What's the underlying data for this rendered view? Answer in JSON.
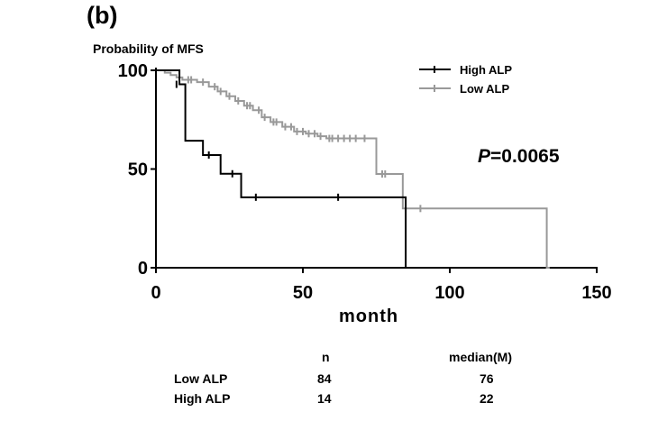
{
  "panel_label": "(b)",
  "p_value": {
    "symbol": "P",
    "text": "=0.0065"
  },
  "legend_position": "top-right",
  "chart_data": {
    "type": "line",
    "title": "",
    "xlabel": "month",
    "ylabel": "Probability of MFS",
    "xlim": [
      0,
      150
    ],
    "ylim": [
      0,
      100
    ],
    "xticks": [
      0,
      50,
      100,
      150
    ],
    "yticks": [
      0,
      50,
      100
    ],
    "grid": false,
    "series": [
      {
        "name": "High ALP",
        "color": "#000000",
        "steps": [
          [
            0,
            100
          ],
          [
            8,
            92.9
          ],
          [
            10,
            64.3
          ],
          [
            16,
            57.1
          ],
          [
            22,
            47.6
          ],
          [
            29,
            35.7
          ],
          [
            85,
            0
          ],
          [
            85.5,
            0
          ]
        ],
        "censored": [
          [
            7,
            92.9
          ],
          [
            18,
            57.1
          ],
          [
            26,
            47.6
          ],
          [
            34,
            35.7
          ],
          [
            62,
            35.7
          ]
        ]
      },
      {
        "name": "Low ALP",
        "color": "#999999",
        "steps": [
          [
            0,
            100
          ],
          [
            3,
            98.8
          ],
          [
            5,
            97.6
          ],
          [
            7,
            96.4
          ],
          [
            9,
            95.2
          ],
          [
            14,
            94.0
          ],
          [
            18,
            91.7
          ],
          [
            21,
            89.3
          ],
          [
            24,
            86.9
          ],
          [
            27,
            84.5
          ],
          [
            30,
            82.1
          ],
          [
            33,
            79.8
          ],
          [
            36,
            76.2
          ],
          [
            39,
            73.8
          ],
          [
            43,
            71.4
          ],
          [
            47,
            69.0
          ],
          [
            51,
            67.9
          ],
          [
            55,
            66.6
          ],
          [
            58,
            65.5
          ],
          [
            75,
            47.5
          ],
          [
            84,
            30.0
          ],
          [
            133,
            0
          ],
          [
            134,
            0
          ]
        ],
        "censored": [
          [
            11,
            95.2
          ],
          [
            12,
            95.2
          ],
          [
            16,
            94.0
          ],
          [
            20,
            91.7
          ],
          [
            22,
            89.3
          ],
          [
            25,
            86.9
          ],
          [
            28,
            84.5
          ],
          [
            31,
            82.1
          ],
          [
            32,
            82.1
          ],
          [
            35,
            79.8
          ],
          [
            37,
            76.2
          ],
          [
            40,
            73.8
          ],
          [
            41,
            73.8
          ],
          [
            44,
            71.4
          ],
          [
            46,
            71.4
          ],
          [
            48,
            69.0
          ],
          [
            50,
            69.0
          ],
          [
            52,
            67.9
          ],
          [
            54,
            67.9
          ],
          [
            56,
            66.6
          ],
          [
            59,
            65.5
          ],
          [
            60,
            65.5
          ],
          [
            62,
            65.5
          ],
          [
            64,
            65.5
          ],
          [
            66,
            65.5
          ],
          [
            68,
            65.5
          ],
          [
            71,
            65.5
          ],
          [
            77,
            47.5
          ],
          [
            78,
            47.5
          ],
          [
            90,
            30.0
          ]
        ]
      }
    ]
  },
  "summary_table": {
    "headers": [
      "",
      "n",
      "median(M)"
    ],
    "rows": [
      [
        "Low ALP",
        "84",
        "76"
      ],
      [
        "High ALP",
        "14",
        "22"
      ]
    ]
  }
}
